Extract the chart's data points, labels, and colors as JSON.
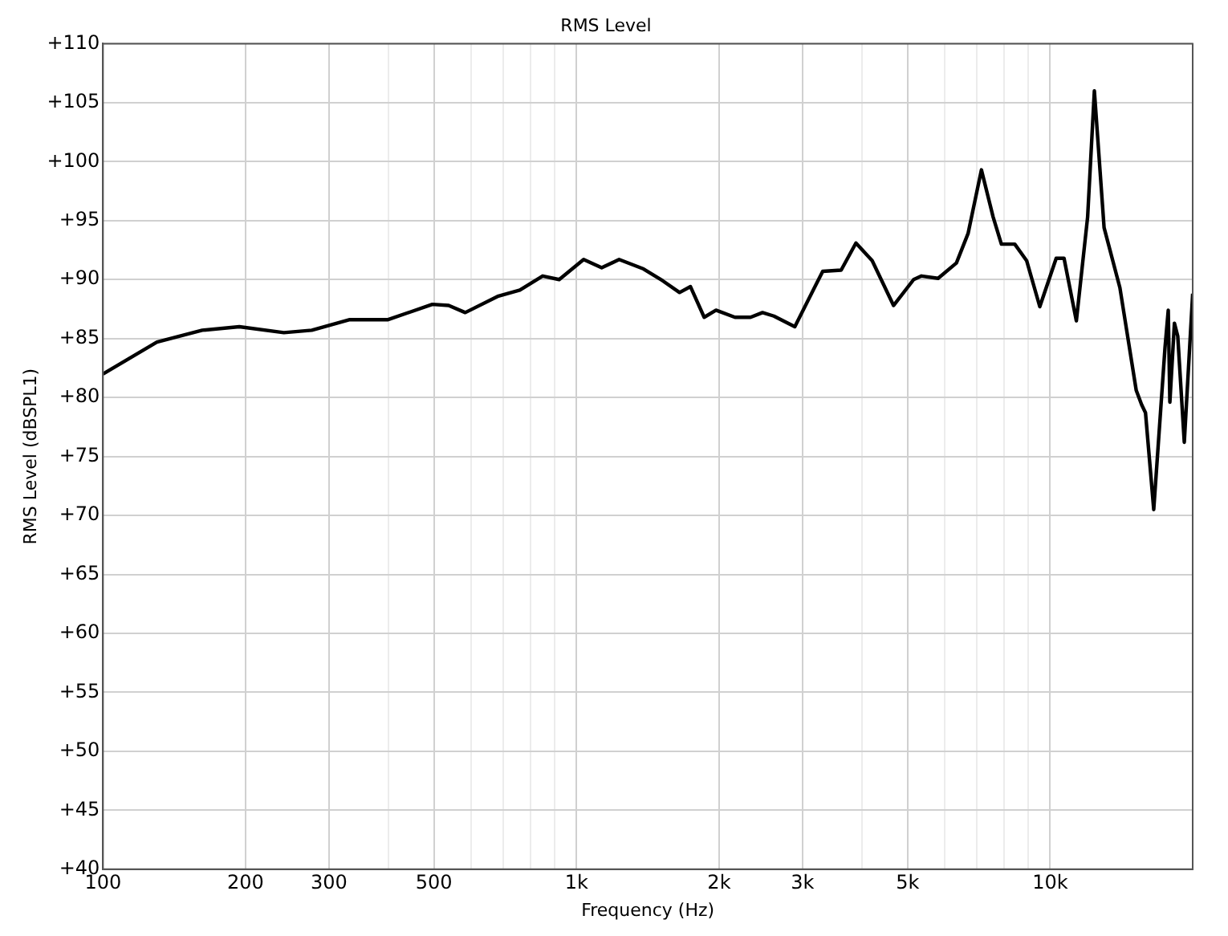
{
  "chart_data": {
    "type": "line",
    "title": "RMS Level",
    "xlabel": "Frequency (Hz)",
    "ylabel": "RMS Level (dBSPL1)",
    "log": "x",
    "grid": true,
    "legend": false,
    "marker": "none",
    "line_style": "solid",
    "xlim": [
      100,
      20000
    ],
    "xticks": [
      100,
      200,
      300,
      {
        "value": 400,
        "label": null
      },
      500,
      {
        "value": 600,
        "label": null
      },
      {
        "value": 700,
        "label": null
      },
      {
        "value": 800,
        "label": null
      },
      {
        "value": 900,
        "label": null
      },
      {
        "value": 1000,
        "label": "1k"
      },
      {
        "value": 2000,
        "label": "2k"
      },
      {
        "value": 3000,
        "label": "3k"
      },
      {
        "value": 4000,
        "label": null
      },
      {
        "value": 5000,
        "label": "5k"
      },
      {
        "value": 6000,
        "label": null
      },
      {
        "value": 7000,
        "label": null
      },
      {
        "value": 8000,
        "label": null
      },
      {
        "value": 9000,
        "label": null
      },
      {
        "value": 10000,
        "label": "10k"
      }
    ],
    "ylim": [
      40,
      110
    ],
    "yticks": [
      {
        "value": 40,
        "label": "+40"
      },
      {
        "value": 45,
        "label": "+45"
      },
      {
        "value": 50,
        "label": "+50"
      },
      {
        "value": 55,
        "label": "+55"
      },
      {
        "value": 60,
        "label": "+60"
      },
      {
        "value": 65,
        "label": "+65"
      },
      {
        "value": 70,
        "label": "+70"
      },
      {
        "value": 75,
        "label": "+75"
      },
      {
        "value": 80,
        "label": "+80"
      },
      {
        "value": 85,
        "label": "+85"
      },
      {
        "value": 90,
        "label": "+90"
      },
      {
        "value": 95,
        "label": "+95"
      },
      {
        "value": 100,
        "label": "+100"
      },
      {
        "value": 105,
        "label": "+105"
      },
      {
        "value": 110,
        "label": "+110"
      }
    ],
    "series": [
      {
        "color": "#000000",
        "x": [
          100,
          130,
          162,
          194,
          241,
          276,
          332,
          400,
          496,
          537,
          582,
          684,
          759,
          848,
          919,
          1035,
          1130,
          1230,
          1385,
          1520,
          1650,
          1740,
          1860,
          1970,
          2160,
          2330,
          2470,
          2610,
          2890,
          3310,
          3620,
          3890,
          4210,
          4670,
          5150,
          5350,
          5800,
          6340,
          6710,
          7160,
          7580,
          7890,
          8420,
          8920,
          9510,
          10300,
          10700,
          11360,
          12000,
          12400,
          13000,
          14040,
          15200,
          15600,
          15900,
          16550,
          17480,
          17760,
          17900,
          18300,
          18600,
          19200,
          20000
        ],
        "values": [
          82.0,
          84.7,
          85.7,
          86.0,
          85.5,
          85.7,
          86.6,
          86.6,
          87.9,
          87.8,
          87.2,
          88.6,
          89.1,
          90.3,
          90.0,
          91.7,
          91.0,
          91.7,
          90.9,
          89.9,
          88.9,
          89.4,
          86.8,
          87.4,
          86.8,
          86.8,
          87.2,
          86.9,
          86.0,
          90.7,
          90.8,
          93.1,
          91.6,
          87.8,
          90.0,
          90.3,
          90.1,
          91.4,
          93.9,
          99.3,
          95.3,
          93.0,
          93.0,
          91.6,
          87.7,
          91.8,
          91.8,
          86.5,
          95.3,
          106.0,
          94.4,
          89.3,
          80.6,
          79.4,
          78.7,
          70.5,
          84.2,
          87.4,
          79.6,
          86.3,
          85.2,
          76.2,
          88.8
        ]
      }
    ]
  }
}
